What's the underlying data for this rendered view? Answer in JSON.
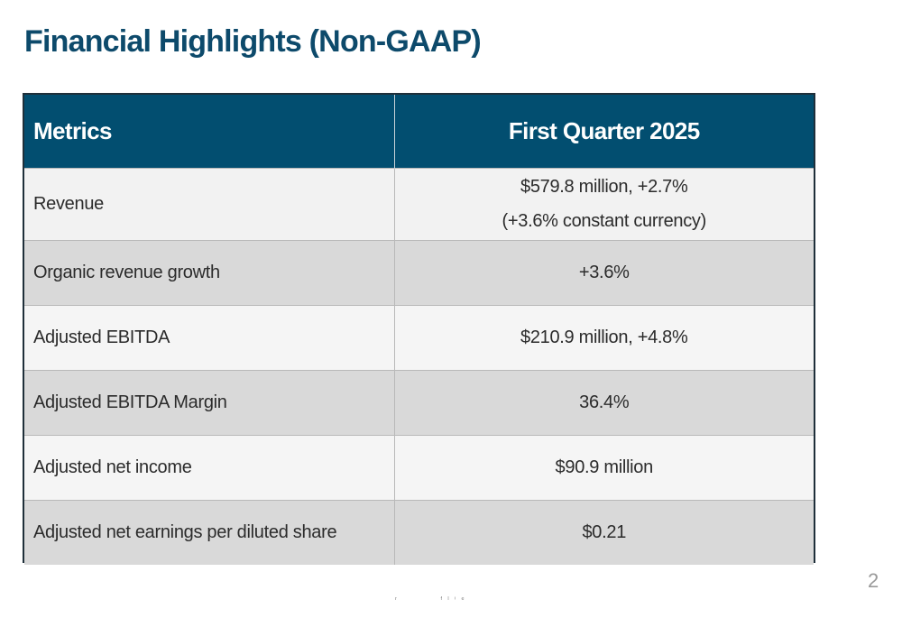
{
  "slide": {
    "title": "Financial Highlights (Non-GAAP)",
    "page_number": "2",
    "footer_fragment": "ʳ           ᶠ ˡ ⁱ ᵉ"
  },
  "table": {
    "headers": {
      "metric": "Metrics",
      "period": "First Quarter 2025"
    },
    "rows": [
      {
        "metric": "Revenue",
        "value": "$579.8 million, +2.7%",
        "value2": "(+3.6% constant currency)"
      },
      {
        "metric": "Organic revenue growth",
        "value": "+3.6%"
      },
      {
        "metric": "Adjusted EBITDA",
        "value": "$210.9 million, +4.8%"
      },
      {
        "metric": "Adjusted EBITDA Margin",
        "value": "36.4%"
      },
      {
        "metric": "Adjusted net income",
        "value": "$90.9 million"
      },
      {
        "metric": "Adjusted net earnings per diluted share",
        "value": "$0.21"
      }
    ]
  },
  "colors": {
    "title": "#0d4a6b",
    "header_bg": "#024e70",
    "row_light": "#f2f2f2",
    "row_dark": "#d9d9d9"
  }
}
